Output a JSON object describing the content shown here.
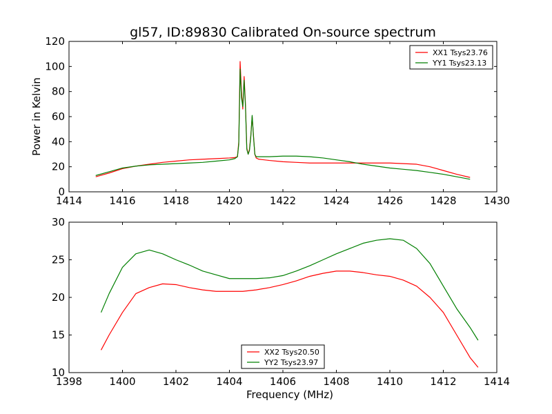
{
  "title": "gl57, ID:89830 Calibrated On-source spectrum",
  "colors": {
    "xx": "#ff0000",
    "yy": "#007f00"
  },
  "chart_data": [
    {
      "type": "line",
      "ylabel": "Power in Kelvin",
      "xlabel": "",
      "xlim": [
        1414,
        1430
      ],
      "ylim": [
        0,
        120
      ],
      "xticks": [
        1414,
        1416,
        1418,
        1420,
        1422,
        1424,
        1426,
        1428,
        1430
      ],
      "yticks": [
        0,
        20,
        40,
        60,
        80,
        100,
        120
      ],
      "grid": false,
      "legend_position": "top-right",
      "series": [
        {
          "name": "XX1 Tsys23.76",
          "color": "#ff0000",
          "x": [
            1415,
            1415.5,
            1416,
            1416.5,
            1417,
            1417.5,
            1418,
            1418.5,
            1419,
            1419.5,
            1420,
            1420.2,
            1420.3,
            1420.35,
            1420.4,
            1420.45,
            1420.5,
            1420.55,
            1420.6,
            1420.65,
            1420.7,
            1420.75,
            1420.8,
            1420.85,
            1420.9,
            1420.95,
            1421,
            1421.1,
            1421.5,
            1422,
            1422.5,
            1423,
            1423.5,
            1424,
            1424.5,
            1425,
            1425.5,
            1426,
            1426.5,
            1427,
            1427.5,
            1428,
            1428.5,
            1429
          ],
          "y": [
            12,
            15,
            18.5,
            20.5,
            22,
            23.5,
            24.5,
            25.5,
            26,
            26.5,
            27,
            27.3,
            28,
            40,
            104,
            80,
            66,
            92,
            70,
            35,
            30,
            34,
            45,
            60,
            45,
            30,
            27,
            26,
            25,
            24,
            23.5,
            23,
            23,
            23,
            23,
            23,
            23,
            23,
            22.5,
            22,
            20,
            17,
            14,
            11.5
          ]
        },
        {
          "name": "YY1 Tsys23.13",
          "color": "#007f00",
          "x": [
            1415,
            1415.5,
            1416,
            1416.5,
            1417,
            1417.5,
            1418,
            1418.5,
            1419,
            1419.5,
            1420,
            1420.2,
            1420.3,
            1420.35,
            1420.4,
            1420.45,
            1420.5,
            1420.55,
            1420.6,
            1420.65,
            1420.7,
            1420.75,
            1420.8,
            1420.85,
            1420.9,
            1420.95,
            1421,
            1421.1,
            1421.5,
            1422,
            1422.5,
            1423,
            1423.5,
            1424,
            1424.5,
            1425,
            1425.5,
            1426,
            1426.5,
            1427,
            1427.5,
            1428,
            1428.5,
            1429
          ],
          "y": [
            13,
            16,
            19,
            20.5,
            21.5,
            22,
            22.5,
            23,
            23.5,
            24.5,
            25.5,
            26.5,
            28,
            38,
            98,
            75,
            68,
            89,
            68,
            34,
            30,
            33,
            44,
            61,
            44,
            30,
            28,
            28,
            28,
            28.5,
            28.5,
            28,
            27,
            25.5,
            24,
            22,
            20.5,
            19,
            18,
            17,
            15.5,
            14,
            12,
            10
          ]
        }
      ]
    },
    {
      "type": "line",
      "ylabel": "",
      "xlabel": "Frequency (MHz)",
      "xlim": [
        1398,
        1414
      ],
      "ylim": [
        10,
        30
      ],
      "xticks": [
        1398,
        1400,
        1402,
        1404,
        1406,
        1408,
        1410,
        1412,
        1414
      ],
      "yticks": [
        10,
        15,
        20,
        25,
        30
      ],
      "grid": false,
      "legend_position": "bottom-center",
      "series": [
        {
          "name": "XX2 Tsys20.50",
          "color": "#ff0000",
          "x": [
            1399.2,
            1399.5,
            1400,
            1400.5,
            1401,
            1401.5,
            1402,
            1402.5,
            1403,
            1403.5,
            1404,
            1404.5,
            1405,
            1405.5,
            1406,
            1406.5,
            1407,
            1407.5,
            1408,
            1408.5,
            1409,
            1409.5,
            1410,
            1410.5,
            1411,
            1411.5,
            1412,
            1412.5,
            1413,
            1413.3
          ],
          "y": [
            13,
            15,
            18,
            20.5,
            21.3,
            21.8,
            21.7,
            21.3,
            21,
            20.8,
            20.8,
            20.8,
            21,
            21.3,
            21.7,
            22.2,
            22.8,
            23.2,
            23.5,
            23.5,
            23.3,
            23,
            22.8,
            22.3,
            21.5,
            20,
            18,
            15,
            12,
            10.7
          ]
        },
        {
          "name": "YY2 Tsys23.97",
          "color": "#007f00",
          "x": [
            1399.2,
            1399.5,
            1400,
            1400.5,
            1401,
            1401.5,
            1402,
            1402.5,
            1403,
            1403.5,
            1404,
            1404.5,
            1405,
            1405.5,
            1406,
            1406.5,
            1407,
            1407.5,
            1408,
            1408.5,
            1409,
            1409.5,
            1410,
            1410.5,
            1411,
            1411.5,
            1412,
            1412.5,
            1413,
            1413.3
          ],
          "y": [
            18,
            20.5,
            24,
            25.8,
            26.3,
            25.8,
            25,
            24.3,
            23.5,
            23,
            22.5,
            22.5,
            22.5,
            22.6,
            22.9,
            23.5,
            24.2,
            25,
            25.8,
            26.5,
            27.2,
            27.6,
            27.8,
            27.6,
            26.5,
            24.5,
            21.5,
            18.5,
            16,
            14.3
          ]
        }
      ]
    }
  ]
}
